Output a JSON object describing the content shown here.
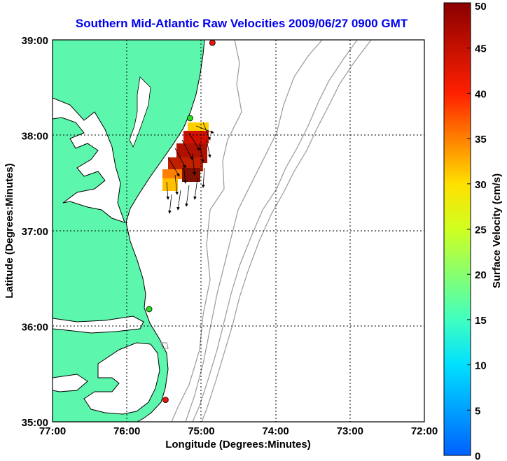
{
  "title": "Southern Mid-Atlantic Raw Velocities 2009/06/27 0900 GMT",
  "axes": {
    "x_label": "Longitude (Degrees:Minutes)",
    "y_label": "Latitude (Degrees:Minutes)",
    "x_ticks": [
      "77:00",
      "76:00",
      "75:00",
      "74:00",
      "73:00",
      "72:00"
    ],
    "y_ticks": [
      "39:00",
      "38:00",
      "37:00",
      "36:00",
      "35:00"
    ]
  },
  "colorbar": {
    "label": "Surface Velocity (cm/s)",
    "ticks": [
      "0",
      "5",
      "10",
      "15",
      "20",
      "25",
      "30",
      "35",
      "40",
      "45",
      "50"
    ],
    "min": 0,
    "max": 50
  },
  "colors": {
    "land": "#5cf7ac",
    "water": "#ffffff",
    "bathymetry": "#999999",
    "coastline": "#000000",
    "title": "#0000ee",
    "site_green": "#22dd22",
    "site_red": "#ee1111"
  },
  "radar_sites": [
    {
      "color": "red",
      "lon": -74.85,
      "lat": 38.97
    },
    {
      "color": "green",
      "lon": -75.15,
      "lat": 38.18
    },
    {
      "color": "green",
      "lon": -75.7,
      "lat": 36.18
    },
    {
      "color": "red",
      "lon": -75.48,
      "lat": 35.23
    }
  ]
}
